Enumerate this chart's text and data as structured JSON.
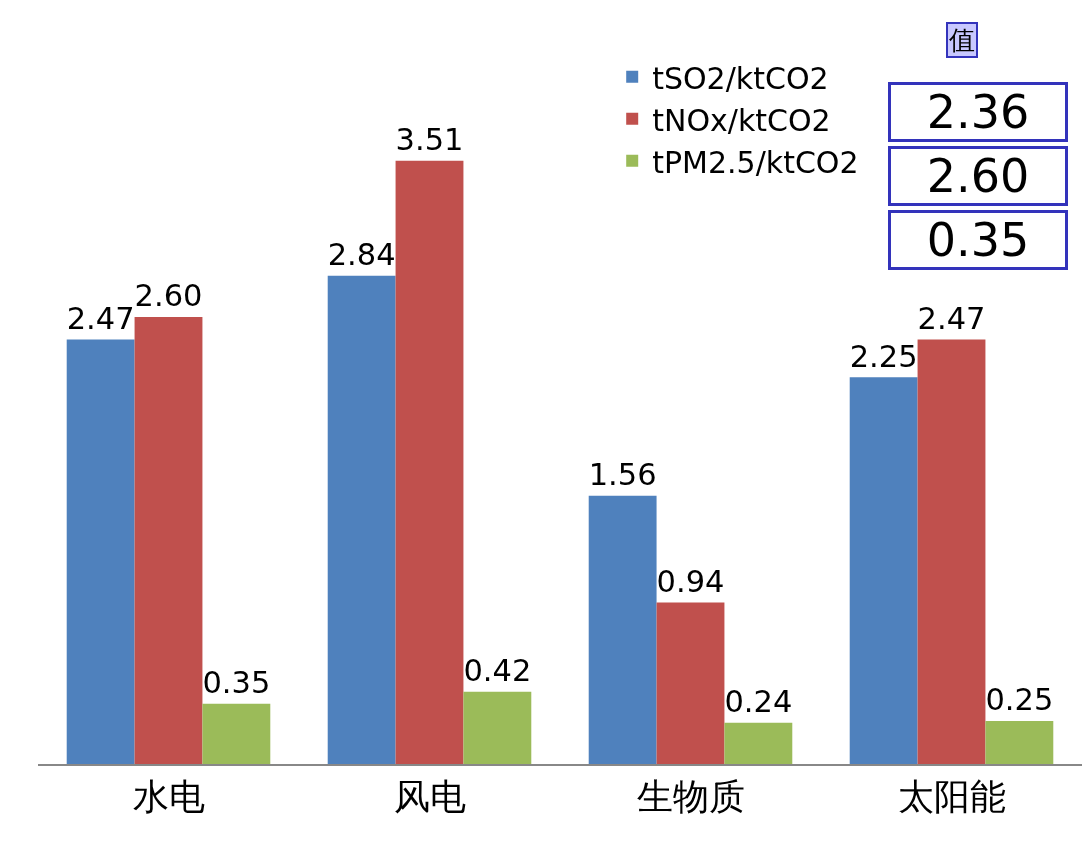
{
  "chart_data": {
    "type": "bar",
    "categories": [
      "水电",
      "风电",
      "生物质",
      "太阳能"
    ],
    "series": [
      {
        "name": "tSO2/ktCO2",
        "color": "#4f81bd",
        "values": [
          2.47,
          2.84,
          1.56,
          2.25
        ],
        "value_labels": [
          "2.47",
          "2.84",
          "1.56",
          "2.25"
        ]
      },
      {
        "name": "tNOx/ktCO2",
        "color": "#c0504d",
        "values": [
          2.6,
          3.51,
          0.94,
          2.47
        ],
        "value_labels": [
          "2.60",
          "3.51",
          "0.94",
          "2.47"
        ]
      },
      {
        "name": "tPM2.5/ktCO2",
        "color": "#9bbb59",
        "values": [
          0.35,
          0.42,
          0.24,
          0.25
        ],
        "value_labels": [
          "0.35",
          "0.42",
          "0.24",
          "0.25"
        ]
      }
    ],
    "legend": "top right",
    "annotations": [
      "2.36",
      "2.60",
      "0.35",
      "值"
    ]
  }
}
